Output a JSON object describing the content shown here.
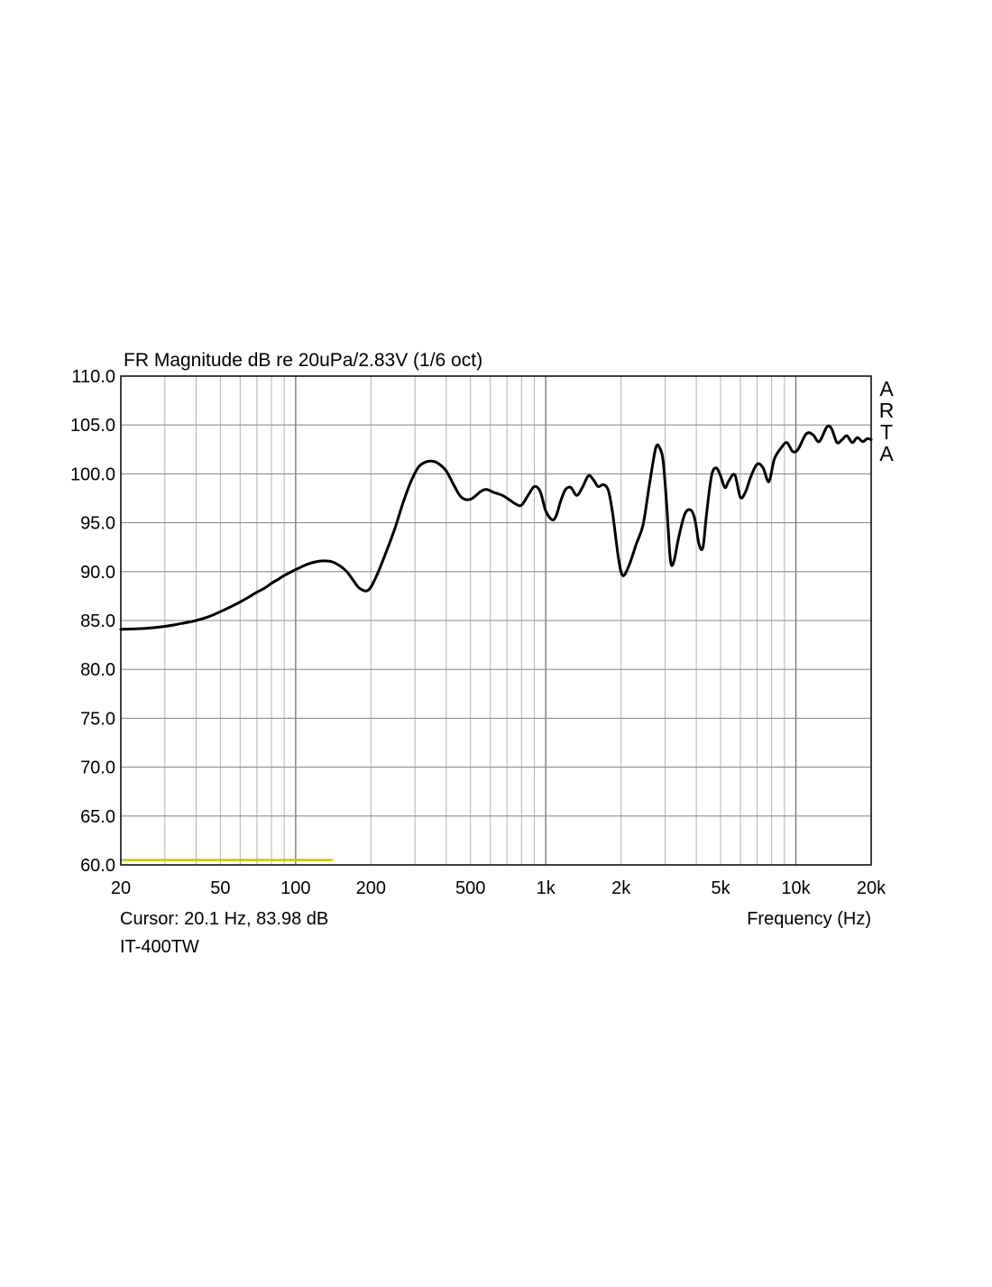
{
  "chart_data": {
    "type": "line",
    "title": "FR Magnitude dB re 20uPa/2.83V (1/6 oct)",
    "xlabel": "Frequency (Hz)",
    "ylabel": "",
    "x_scale": "log",
    "xlim": [
      20,
      20000
    ],
    "ylim": [
      60,
      110
    ],
    "grid": true,
    "x_ticks": [
      {
        "value": 20,
        "label": "20"
      },
      {
        "value": 50,
        "label": "50"
      },
      {
        "value": 100,
        "label": "100"
      },
      {
        "value": 200,
        "label": "200"
      },
      {
        "value": 500,
        "label": "500"
      },
      {
        "value": 1000,
        "label": "1k"
      },
      {
        "value": 2000,
        "label": "2k"
      },
      {
        "value": 5000,
        "label": "5k"
      },
      {
        "value": 10000,
        "label": "10k"
      },
      {
        "value": 20000,
        "label": "20k"
      }
    ],
    "y_ticks": [
      {
        "value": 110,
        "label": "110.0"
      },
      {
        "value": 105,
        "label": "105.0"
      },
      {
        "value": 100,
        "label": "100.0"
      },
      {
        "value": 95,
        "label": "95.0"
      },
      {
        "value": 90,
        "label": "90.0"
      },
      {
        "value": 85,
        "label": "85.0"
      },
      {
        "value": 80,
        "label": "80.0"
      },
      {
        "value": 75,
        "label": "75.0"
      },
      {
        "value": 70,
        "label": "70.0"
      },
      {
        "value": 65,
        "label": "65.0"
      },
      {
        "value": 60,
        "label": "60.0"
      }
    ],
    "series": [
      {
        "color": "#000000",
        "points": [
          [
            20,
            84.1
          ],
          [
            25,
            84.2
          ],
          [
            30,
            84.4
          ],
          [
            35,
            84.7
          ],
          [
            40,
            85.0
          ],
          [
            45,
            85.4
          ],
          [
            50,
            85.9
          ],
          [
            55,
            86.4
          ],
          [
            60,
            86.9
          ],
          [
            65,
            87.4
          ],
          [
            70,
            87.9
          ],
          [
            75,
            88.3
          ],
          [
            80,
            88.8
          ],
          [
            85,
            89.2
          ],
          [
            90,
            89.6
          ],
          [
            100,
            90.2
          ],
          [
            110,
            90.7
          ],
          [
            120,
            91.0
          ],
          [
            130,
            91.1
          ],
          [
            140,
            91.0
          ],
          [
            150,
            90.6
          ],
          [
            160,
            90.0
          ],
          [
            170,
            89.1
          ],
          [
            180,
            88.3
          ],
          [
            195,
            88.1
          ],
          [
            210,
            89.5
          ],
          [
            230,
            92.0
          ],
          [
            250,
            94.5
          ],
          [
            270,
            97.2
          ],
          [
            290,
            99.3
          ],
          [
            310,
            100.7
          ],
          [
            330,
            101.2
          ],
          [
            350,
            101.3
          ],
          [
            370,
            101.1
          ],
          [
            400,
            100.3
          ],
          [
            430,
            98.8
          ],
          [
            460,
            97.6
          ],
          [
            500,
            97.4
          ],
          [
            550,
            98.2
          ],
          [
            580,
            98.4
          ],
          [
            620,
            98.1
          ],
          [
            670,
            97.8
          ],
          [
            720,
            97.3
          ],
          [
            760,
            96.9
          ],
          [
            800,
            96.8
          ],
          [
            850,
            97.8
          ],
          [
            900,
            98.7
          ],
          [
            950,
            98.2
          ],
          [
            1000,
            96.2
          ],
          [
            1060,
            95.3
          ],
          [
            1100,
            95.7
          ],
          [
            1150,
            97.3
          ],
          [
            1200,
            98.4
          ],
          [
            1260,
            98.6
          ],
          [
            1330,
            97.8
          ],
          [
            1400,
            98.6
          ],
          [
            1480,
            99.8
          ],
          [
            1550,
            99.4
          ],
          [
            1620,
            98.7
          ],
          [
            1700,
            98.9
          ],
          [
            1780,
            98.3
          ],
          [
            1850,
            96.0
          ],
          [
            1950,
            91.5
          ],
          [
            2030,
            89.6
          ],
          [
            2150,
            90.6
          ],
          [
            2300,
            92.8
          ],
          [
            2450,
            94.8
          ],
          [
            2600,
            99.0
          ],
          [
            2750,
            102.6
          ],
          [
            2850,
            102.7
          ],
          [
            2950,
            101.2
          ],
          [
            3050,
            96.5
          ],
          [
            3150,
            91.2
          ],
          [
            3250,
            91.0
          ],
          [
            3400,
            93.5
          ],
          [
            3600,
            95.9
          ],
          [
            3800,
            96.3
          ],
          [
            3950,
            95.3
          ],
          [
            4100,
            92.8
          ],
          [
            4250,
            92.5
          ],
          [
            4400,
            96.0
          ],
          [
            4600,
            99.8
          ],
          [
            4800,
            100.6
          ],
          [
            5000,
            99.8
          ],
          [
            5200,
            98.6
          ],
          [
            5400,
            99.3
          ],
          [
            5700,
            99.9
          ],
          [
            6000,
            97.6
          ],
          [
            6300,
            98.2
          ],
          [
            6600,
            99.7
          ],
          [
            7000,
            101.0
          ],
          [
            7400,
            100.6
          ],
          [
            7800,
            99.2
          ],
          [
            8200,
            101.5
          ],
          [
            8700,
            102.6
          ],
          [
            9200,
            103.2
          ],
          [
            9700,
            102.3
          ],
          [
            10200,
            102.5
          ],
          [
            11000,
            104.1
          ],
          [
            11700,
            104.0
          ],
          [
            12400,
            103.3
          ],
          [
            13300,
            104.8
          ],
          [
            13900,
            104.6
          ],
          [
            14600,
            103.2
          ],
          [
            15300,
            103.5
          ],
          [
            16000,
            103.9
          ],
          [
            16800,
            103.2
          ],
          [
            17600,
            103.7
          ],
          [
            18500,
            103.3
          ],
          [
            19300,
            103.6
          ],
          [
            20000,
            103.5
          ]
        ]
      },
      {
        "color": "#c8c800",
        "points": [
          [
            20,
            60.5
          ],
          [
            140,
            60.5
          ]
        ]
      }
    ]
  },
  "cursor_text": "Cursor: 20.1 Hz, 83.98 dB",
  "measurement_name": "IT-400TW",
  "brand_letters": [
    "A",
    "R",
    "T",
    "A"
  ]
}
